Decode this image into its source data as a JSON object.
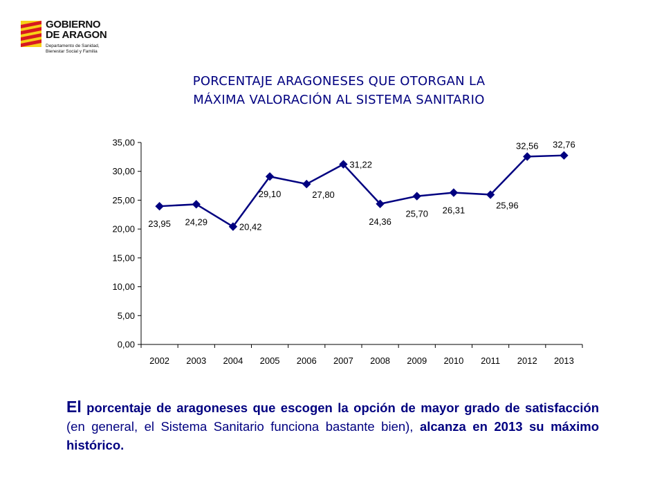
{
  "logo": {
    "line1": "GOBIERNO",
    "line2": "DE ARAGON",
    "dept_line1": "Departamento de Sanidad,",
    "dept_line2": "Bienestar Social y Familia"
  },
  "chart_data": {
    "type": "line",
    "title_line1": "PORCENTAJE ARAGONESES QUE OTORGAN LA",
    "title_line2": "MÁXIMA VALORACIÓN AL SISTEMA SANITARIO",
    "categories": [
      "2002",
      "2003",
      "2004",
      "2005",
      "2006",
      "2007",
      "2008",
      "2009",
      "2010",
      "2011",
      "2012",
      "2013"
    ],
    "values": [
      23.95,
      24.29,
      20.42,
      29.1,
      27.8,
      31.22,
      24.36,
      25.7,
      26.31,
      25.96,
      32.56,
      32.76
    ],
    "data_labels": [
      "23,95",
      "24,29",
      "20,42",
      "29,10",
      "27,80",
      "31,22",
      "24,36",
      "25,70",
      "26,31",
      "25,96",
      "32,56",
      "32,76"
    ],
    "ylim": [
      0,
      35
    ],
    "y_ticks": [
      0,
      5,
      10,
      15,
      20,
      25,
      30,
      35
    ],
    "y_tick_labels": [
      "0,00",
      "5,00",
      "10,00",
      "15,00",
      "20,00",
      "25,00",
      "30,00",
      "35,00"
    ],
    "grid": false,
    "legend": "none",
    "line_color": "#000080",
    "marker": "diamond"
  },
  "caption": {
    "p1": "El",
    "p2": " porcentaje de aragoneses que escogen la opción de mayor grado de satisfacción",
    "p3": " (en general, el Sistema Sanitario funciona bastante bien), ",
    "p4": "alcanza en 2013 su máximo histórico."
  },
  "colors": {
    "title": "#000080",
    "caption": "#000080",
    "series": "#000080"
  }
}
